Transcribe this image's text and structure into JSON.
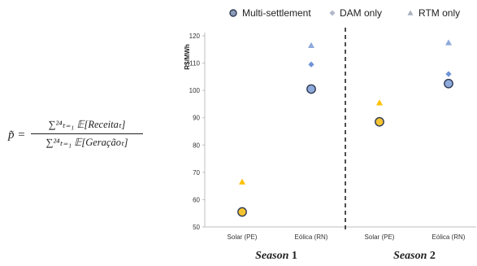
{
  "formula": {
    "lhs": "p̃ =",
    "numerator": "∑²⁴ₜ₌₁ 𝔼[Receitaₜ]",
    "denominator": "∑²⁴ₜ₌₁ 𝔼[Geraçãoₜ]"
  },
  "chart_data": {
    "type": "scatter",
    "ylabel": "R$/MWh",
    "ylim": [
      50,
      120
    ],
    "yticks": [
      50,
      60,
      70,
      80,
      90,
      100,
      110,
      120
    ],
    "categories": [
      "Solar (PE)",
      "Eólica (RN)",
      "Solar (PE)",
      "Eólica (RN)"
    ],
    "groups": [
      {
        "label": "Season 1",
        "name": "Season",
        "num": "1"
      },
      {
        "label": "Season 2",
        "name": "Season",
        "num": "2"
      }
    ],
    "grid": false,
    "legend_position": "top",
    "series": [
      {
        "name": "Multi-settlement",
        "marker": "circle",
        "values": [
          55.5,
          100.5,
          88.5,
          102.5
        ],
        "colors": [
          "#f4c430",
          "#8eaadb",
          "#f4c430",
          "#8eaadb"
        ]
      },
      {
        "name": "DAM only",
        "marker": "diamond",
        "values": [
          56,
          109.5,
          88.5,
          106
        ],
        "colors": [
          "#ffd966",
          "#6f93d6",
          "#ffd966",
          "#6f93d6"
        ]
      },
      {
        "name": "RTM only",
        "marker": "triangle",
        "values": [
          66.5,
          116.5,
          95.5,
          117.5
        ],
        "colors": [
          "#ffc000",
          "#8eaadb",
          "#ffc000",
          "#8eaadb"
        ]
      }
    ],
    "legend_colors": {
      "Multi-settlement": "#8a9bb8",
      "DAM only": "#b0b8c8",
      "RTM only": "#a8b0bc"
    }
  }
}
